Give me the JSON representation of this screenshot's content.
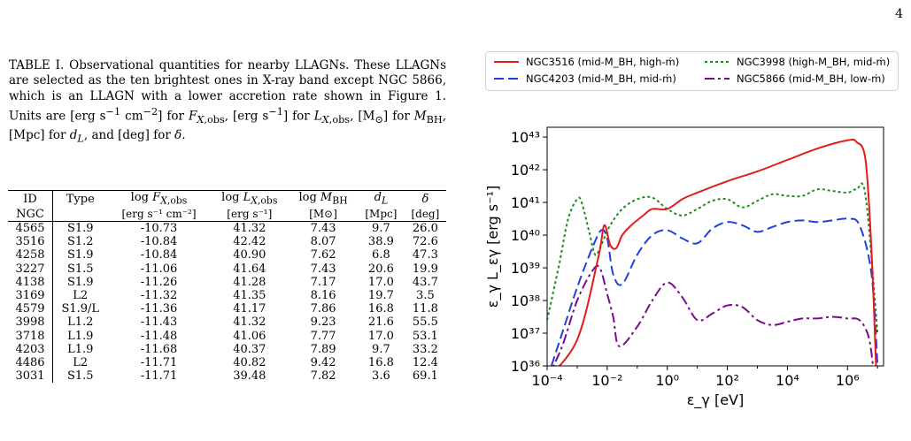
{
  "page_number": "4",
  "caption": "TABLE I. Observational quantities for nearby LLAGNs. These LLAGNs are selected as the ten brightest ones in X-ray band except NGC 5866, which is an LLAGN with a lower accretion rate shown in Figure 1. Units are [erg s⁻¹ cm⁻²] for F_X,obs, [erg s⁻¹] for L_X,obs, [M⊙] for M_BH, [Mpc] for d_L, and [deg] for δ.",
  "table": {
    "headers": [
      "ID",
      "Type",
      "log F_X,obs",
      "log L_X,obs",
      "log M_BH",
      "d_L",
      "δ"
    ],
    "subheaders": [
      "NGC",
      "",
      "[erg s⁻¹ cm⁻²]",
      "[erg s⁻¹]",
      "[M⊙]",
      "[Mpc]",
      "[deg]"
    ],
    "rows": [
      [
        "4565",
        "S1.9",
        "-10.73",
        "41.32",
        "7.43",
        "9.7",
        "26.0"
      ],
      [
        "3516",
        "S1.2",
        "-10.84",
        "42.42",
        "8.07",
        "38.9",
        "72.6"
      ],
      [
        "4258",
        "S1.9",
        "-10.84",
        "40.90",
        "7.62",
        "6.8",
        "47.3"
      ],
      [
        "3227",
        "S1.5",
        "-11.06",
        "41.64",
        "7.43",
        "20.6",
        "19.9"
      ],
      [
        "4138",
        "S1.9",
        "-11.26",
        "41.28",
        "7.17",
        "17.0",
        "43.7"
      ],
      [
        "3169",
        "L2",
        "-11.32",
        "41.35",
        "8.16",
        "19.7",
        "3.5"
      ],
      [
        "4579",
        "S1.9/L",
        "-11.36",
        "41.17",
        "7.86",
        "16.8",
        "11.8"
      ],
      [
        "3998",
        "L1.2",
        "-11.43",
        "41.32",
        "9.23",
        "21.6",
        "55.5"
      ],
      [
        "3718",
        "L1.9",
        "-11.48",
        "41.06",
        "7.77",
        "17.0",
        "53.1"
      ],
      [
        "4203",
        "L1.9",
        "-11.68",
        "40.37",
        "7.89",
        "9.7",
        "33.2"
      ],
      [
        "4486",
        "L2",
        "-11.71",
        "40.82",
        "9.42",
        "16.8",
        "12.4"
      ],
      [
        "3031",
        "S1.5",
        "-11.71",
        "39.48",
        "7.82",
        "3.6",
        "69.1"
      ]
    ]
  },
  "chart_data": {
    "type": "line",
    "xlabel": "ε_γ [eV]",
    "ylabel": "ε_γ L_εγ [erg s⁻¹]",
    "xscale": "log",
    "yscale": "log",
    "xlim_log10": [
      -4,
      7.2
    ],
    "ylim_log10": [
      36,
      43.3
    ],
    "xticks": [
      "10⁻⁴",
      "10⁻²",
      "10⁰",
      "10²",
      "10⁴",
      "10⁶"
    ],
    "yticks": [
      "10³⁶",
      "10³⁷",
      "10³⁸",
      "10³⁹",
      "10⁴⁰",
      "10⁴¹",
      "10⁴²",
      "10⁴³"
    ],
    "legend_position": "top, 2 columns",
    "series": [
      {
        "name": "NGC3516 (mid-M_BH, high-ṁ)",
        "color": "#e41a1c",
        "dash": "solid",
        "x_log10": [
          -4,
          -3,
          -2.3,
          -2.1,
          -1.9,
          -1.7,
          -1.5,
          -1.2,
          -0.8,
          -0.5,
          0,
          0.5,
          1,
          2,
          3,
          4,
          5,
          6,
          6.3,
          6.6,
          6.8,
          6.95
        ],
        "y_log10": [
          35.6,
          36.8,
          39.3,
          40.3,
          39.7,
          39.6,
          40.0,
          40.3,
          40.6,
          40.8,
          40.8,
          41.1,
          41.3,
          41.65,
          41.95,
          42.3,
          42.65,
          42.9,
          42.85,
          42.3,
          39.5,
          36.0
        ]
      },
      {
        "name": "NGC3998 (high-M_BH, mid-ṁ)",
        "color": "#1a8c1a",
        "dash": "dotted",
        "x_log10": [
          -4,
          -3.6,
          -3.3,
          -3,
          -2.85,
          -2.6,
          -2.4,
          -2.2,
          -1.9,
          -1.5,
          -1,
          -0.5,
          0,
          0.5,
          1,
          1.5,
          2,
          2.5,
          3,
          3.5,
          4,
          4.5,
          5,
          5.5,
          6,
          6.3,
          6.6,
          7.0
        ],
        "y_log10": [
          37.4,
          39.1,
          40.5,
          41.1,
          41.0,
          40.1,
          39.4,
          39.7,
          40.3,
          40.8,
          41.1,
          41.15,
          40.8,
          40.6,
          40.8,
          41.05,
          41.1,
          40.85,
          41.05,
          41.25,
          41.2,
          41.2,
          41.4,
          41.35,
          41.3,
          41.4,
          41.2,
          37.0
        ]
      },
      {
        "name": "NGC4203 (mid-M_BH, mid-ṁ)",
        "color": "#1f3fdf",
        "dash": "long dashed",
        "x_log10": [
          -4,
          -3.5,
          -3,
          -2.5,
          -2.2,
          -2.0,
          -1.8,
          -1.5,
          -1,
          -0.5,
          0,
          0.5,
          1,
          1.5,
          2,
          2.5,
          3,
          3.5,
          4,
          4.5,
          5,
          5.5,
          6,
          6.4,
          6.8,
          7.0
        ],
        "y_log10": [
          35.6,
          37.0,
          38.4,
          39.6,
          40.15,
          39.9,
          38.8,
          38.5,
          39.4,
          40.0,
          40.15,
          39.9,
          39.75,
          40.2,
          40.4,
          40.3,
          40.1,
          40.25,
          40.4,
          40.45,
          40.4,
          40.45,
          40.5,
          40.3,
          38.8,
          36.0
        ]
      },
      {
        "name": "NGC5866 (mid-M_BH, low-ṁ)",
        "color": "#7b0a8c",
        "dash": "dash-dot",
        "x_log10": [
          -4,
          -3.5,
          -3,
          -2.5,
          -2.25,
          -2.0,
          -1.8,
          -1.6,
          -1,
          -0.5,
          0,
          0.5,
          1,
          1.5,
          2,
          2.5,
          3,
          3.5,
          4,
          4.5,
          5,
          5.5,
          6,
          6.4,
          6.7,
          6.85
        ],
        "y_log10": [
          35.6,
          36.6,
          38.0,
          38.9,
          39.0,
          38.2,
          37.5,
          36.6,
          37.2,
          38.0,
          38.55,
          38.1,
          37.4,
          37.6,
          37.85,
          37.8,
          37.4,
          37.25,
          37.35,
          37.45,
          37.45,
          37.5,
          37.45,
          37.4,
          36.9,
          36.0
        ]
      }
    ]
  }
}
